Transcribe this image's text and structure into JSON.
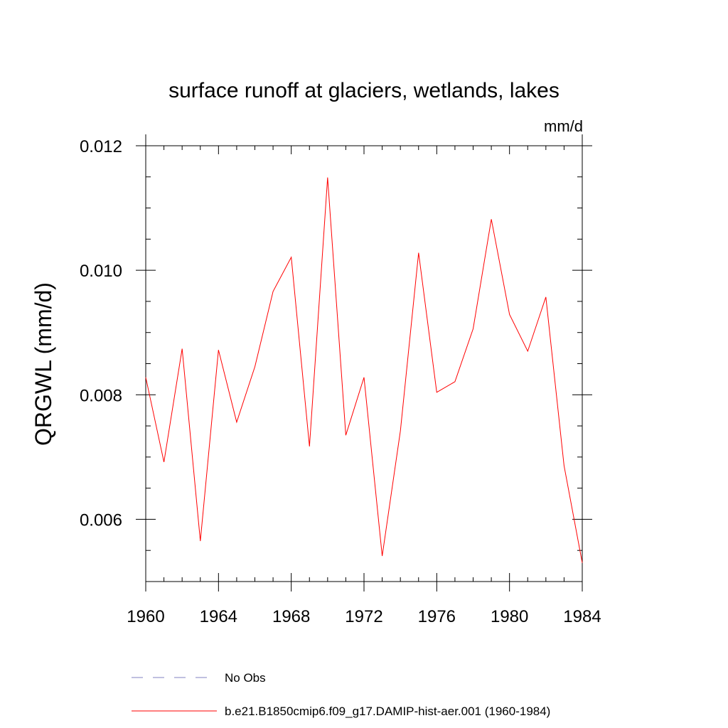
{
  "chart_data": {
    "type": "line",
    "title": "surface runoff at glaciers, wetlands, lakes",
    "units": "mm/d",
    "ylabel": "QRGWL  (mm/d)",
    "xlabel": "",
    "xlim": [
      1960,
      1984
    ],
    "ylim": [
      0.005,
      0.012
    ],
    "x_ticks": [
      "1960",
      "1964",
      "1968",
      "1972",
      "1976",
      "1980",
      "1984"
    ],
    "y_ticks": [
      "0.006",
      "0.008",
      "0.010",
      "0.012"
    ],
    "x": [
      1960,
      1961,
      1962,
      1963,
      1964,
      1965,
      1966,
      1967,
      1968,
      1969,
      1970,
      1971,
      1972,
      1973,
      1974,
      1975,
      1976,
      1977,
      1978,
      1979,
      1980,
      1981,
      1982,
      1983,
      1984
    ],
    "series": [
      {
        "name": "b.e21.B1850cmip6.f09_g17.DAMIP-hist-aer.001 (1960-1984)",
        "color": "#ff0000",
        "values": [
          0.00828,
          0.00692,
          0.00874,
          0.00565,
          0.00872,
          0.00756,
          0.00845,
          0.00966,
          0.01021,
          0.00717,
          0.01149,
          0.00735,
          0.00828,
          0.00541,
          0.00742,
          0.01028,
          0.00804,
          0.00821,
          0.00906,
          0.01082,
          0.00929,
          0.0087,
          0.00957,
          0.00686,
          0.0053
        ]
      }
    ],
    "legend": {
      "placement": "bottom",
      "entries": [
        {
          "label": "No Obs",
          "style": "dashed",
          "color": "#8080c0"
        },
        {
          "label": "b.e21.B1850cmip6.f09_g17.DAMIP-hist-aer.001 (1960-1984)",
          "style": "solid",
          "color": "#ff0000"
        }
      ]
    }
  }
}
